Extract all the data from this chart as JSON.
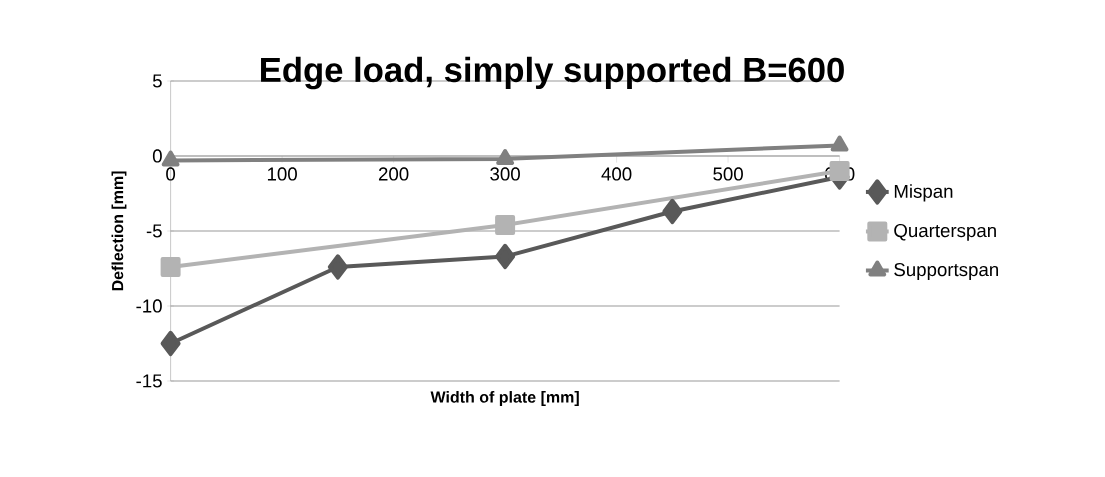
{
  "chart_data": {
    "type": "line",
    "title": "Edge load, simply supported B=600",
    "xlabel": "Width of plate [mm]",
    "ylabel": "Deflection [mm]",
    "xlim": [
      0,
      600
    ],
    "xticks": [
      0,
      100,
      200,
      300,
      400,
      500,
      600
    ],
    "ylim": [
      -15,
      5
    ],
    "yticks": [
      -15,
      -10,
      -5,
      0,
      5
    ],
    "grid": "y",
    "legend": "right",
    "series": [
      {
        "name": "Mispan",
        "color": "#595959",
        "marker": "diamond",
        "x": [
          0,
          150,
          300,
          450,
          600
        ],
        "values": [
          -12.5,
          -7.4,
          -6.7,
          -3.7,
          -1.4
        ]
      },
      {
        "name": "Quarterspan",
        "color": "#b3b3b3",
        "marker": "square",
        "x": [
          0,
          300,
          600
        ],
        "values": [
          -7.4,
          -4.6,
          -1.0
        ]
      },
      {
        "name": "Supportspan",
        "color": "#808080",
        "marker": "triangle",
        "x": [
          0,
          300,
          600
        ],
        "values": [
          -0.3,
          -0.2,
          0.7
        ]
      }
    ]
  }
}
